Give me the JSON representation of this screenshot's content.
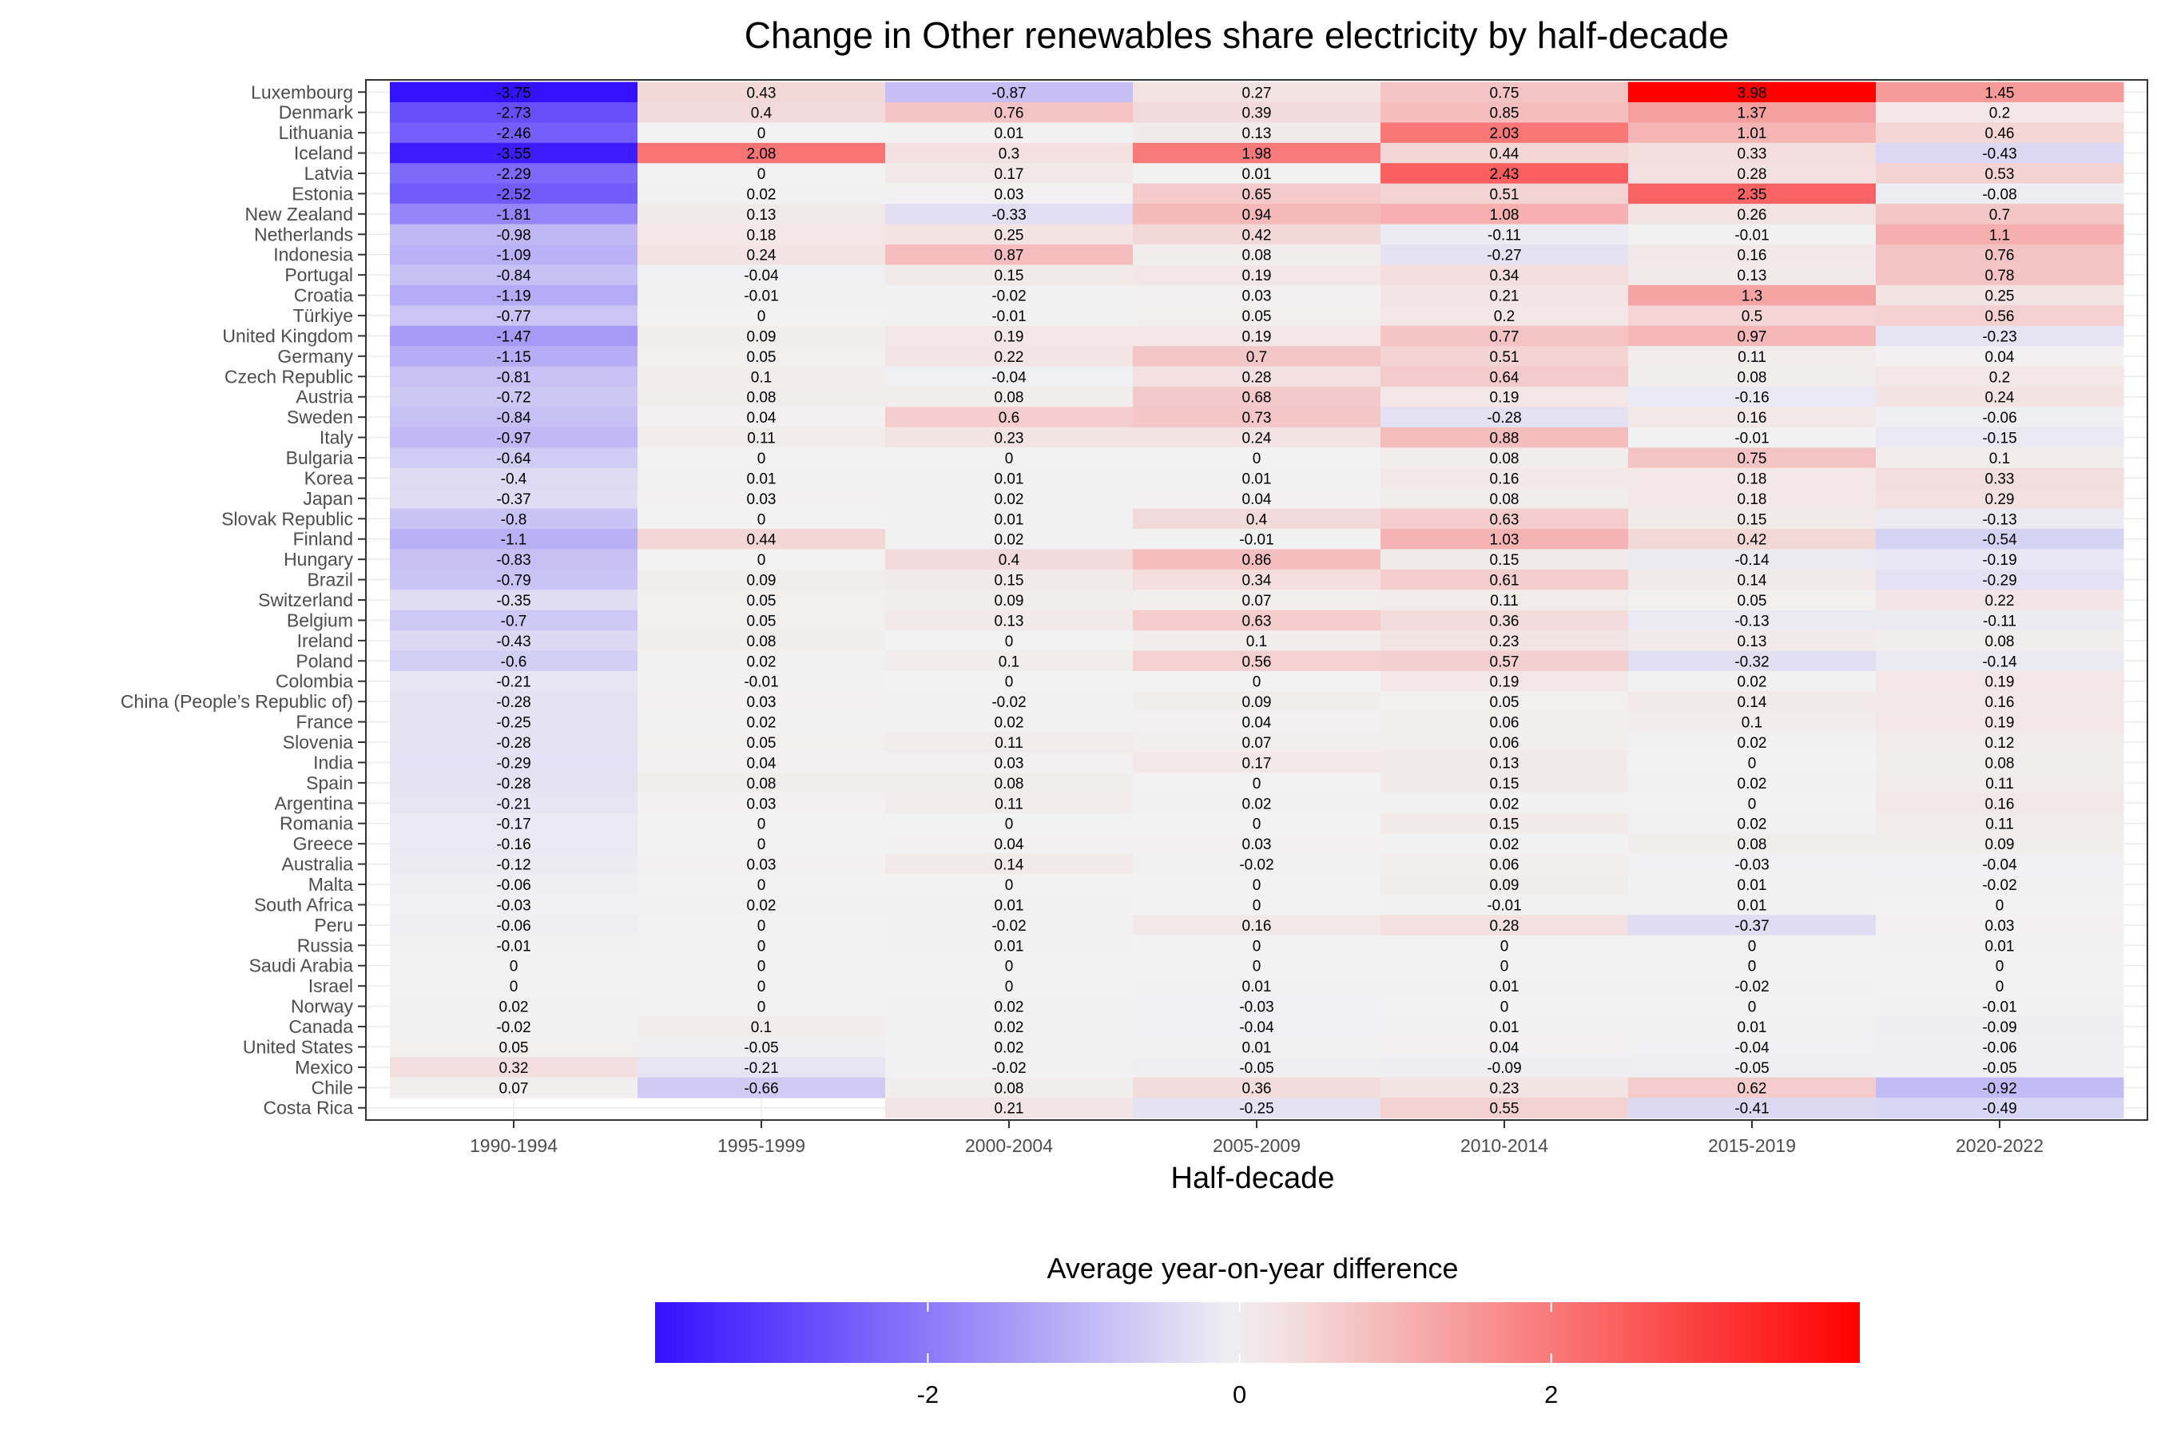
{
  "chart_data": {
    "type": "heatmap",
    "title": "Change in Other renewables share electricity by half-decade",
    "xlabel": "Half-decade",
    "legend_title": "Average year-on-year difference",
    "legend_position": "bottom",
    "legend_ticks": [
      -2,
      0,
      2
    ],
    "legend_tick_labels": [
      "-2",
      "0",
      "2"
    ],
    "color_scale": {
      "low": "#3311ff",
      "mid": "#f2f2f2",
      "high": "#ff0000",
      "min": -3.75,
      "max": 3.98,
      "midpoint": 0
    },
    "columns": [
      "1990-1994",
      "1995-1999",
      "2000-2004",
      "2005-2009",
      "2010-2014",
      "2015-2019",
      "2020-2022"
    ],
    "rows": [
      {
        "country": "Luxembourg",
        "values": [
          -3.75,
          0.43,
          -0.87,
          0.27,
          0.75,
          3.98,
          1.45
        ]
      },
      {
        "country": "Denmark",
        "values": [
          -2.73,
          0.4,
          0.76,
          0.39,
          0.85,
          1.37,
          0.2
        ]
      },
      {
        "country": "Lithuania",
        "values": [
          -2.46,
          0,
          0.01,
          0.13,
          2.03,
          1.01,
          0.46
        ]
      },
      {
        "country": "Iceland",
        "values": [
          -3.55,
          2.08,
          0.3,
          1.98,
          0.44,
          0.33,
          -0.43
        ]
      },
      {
        "country": "Latvia",
        "values": [
          -2.29,
          0,
          0.17,
          0.01,
          2.43,
          0.28,
          0.53
        ]
      },
      {
        "country": "Estonia",
        "values": [
          -2.52,
          0.02,
          0.03,
          0.65,
          0.51,
          2.35,
          -0.08
        ]
      },
      {
        "country": "New Zealand",
        "values": [
          -1.81,
          0.13,
          -0.33,
          0.94,
          1.08,
          0.26,
          0.7
        ]
      },
      {
        "country": "Netherlands",
        "values": [
          -0.98,
          0.18,
          0.25,
          0.42,
          -0.11,
          -0.01,
          1.1
        ]
      },
      {
        "country": "Indonesia",
        "values": [
          -1.09,
          0.24,
          0.87,
          0.08,
          -0.27,
          0.16,
          0.76
        ]
      },
      {
        "country": "Portugal",
        "values": [
          -0.84,
          -0.04,
          0.15,
          0.19,
          0.34,
          0.13,
          0.78
        ]
      },
      {
        "country": "Croatia",
        "values": [
          -1.19,
          -0.01,
          -0.02,
          0.03,
          0.21,
          1.3,
          0.25
        ]
      },
      {
        "country": "Türkiye",
        "values": [
          -0.77,
          0,
          -0.01,
          0.05,
          0.2,
          0.5,
          0.56
        ]
      },
      {
        "country": "United Kingdom",
        "values": [
          -1.47,
          0.09,
          0.19,
          0.19,
          0.77,
          0.97,
          -0.23
        ]
      },
      {
        "country": "Germany",
        "values": [
          -1.15,
          0.05,
          0.22,
          0.7,
          0.51,
          0.11,
          0.04
        ]
      },
      {
        "country": "Czech Republic",
        "values": [
          -0.81,
          0.1,
          -0.04,
          0.28,
          0.64,
          0.08,
          0.2
        ]
      },
      {
        "country": "Austria",
        "values": [
          -0.72,
          0.08,
          0.08,
          0.68,
          0.19,
          -0.16,
          0.24
        ]
      },
      {
        "country": "Sweden",
        "values": [
          -0.84,
          0.04,
          0.6,
          0.73,
          -0.28,
          0.16,
          -0.06
        ]
      },
      {
        "country": "Italy",
        "values": [
          -0.97,
          0.11,
          0.23,
          0.24,
          0.88,
          -0.01,
          -0.15
        ]
      },
      {
        "country": "Bulgaria",
        "values": [
          -0.64,
          0,
          0,
          0,
          0.08,
          0.75,
          0.1
        ]
      },
      {
        "country": "Korea",
        "values": [
          -0.4,
          0.01,
          0.01,
          0.01,
          0.16,
          0.18,
          0.33
        ]
      },
      {
        "country": "Japan",
        "values": [
          -0.37,
          0.03,
          0.02,
          0.04,
          0.08,
          0.18,
          0.29
        ]
      },
      {
        "country": "Slovak Republic",
        "values": [
          -0.8,
          0,
          0.01,
          0.4,
          0.63,
          0.15,
          -0.13
        ]
      },
      {
        "country": "Finland",
        "values": [
          -1.1,
          0.44,
          0.02,
          -0.01,
          1.03,
          0.42,
          -0.54
        ]
      },
      {
        "country": "Hungary",
        "values": [
          -0.83,
          0,
          0.4,
          0.86,
          0.15,
          -0.14,
          -0.19
        ]
      },
      {
        "country": "Brazil",
        "values": [
          -0.79,
          0.09,
          0.15,
          0.34,
          0.61,
          0.14,
          -0.29
        ]
      },
      {
        "country": "Switzerland",
        "values": [
          -0.35,
          0.05,
          0.09,
          0.07,
          0.11,
          0.05,
          0.22
        ]
      },
      {
        "country": "Belgium",
        "values": [
          -0.7,
          0.05,
          0.13,
          0.63,
          0.36,
          -0.13,
          -0.11
        ]
      },
      {
        "country": "Ireland",
        "values": [
          -0.43,
          0.08,
          0,
          0.1,
          0.23,
          0.13,
          0.08
        ]
      },
      {
        "country": "Poland",
        "values": [
          -0.6,
          0.02,
          0.1,
          0.56,
          0.57,
          -0.32,
          -0.14
        ]
      },
      {
        "country": "Colombia",
        "values": [
          -0.21,
          -0.01,
          0,
          0,
          0.19,
          0.02,
          0.19
        ]
      },
      {
        "country": "China (People’s Republic of)",
        "values": [
          -0.28,
          0.03,
          -0.02,
          0.09,
          0.05,
          0.14,
          0.16
        ]
      },
      {
        "country": "France",
        "values": [
          -0.25,
          0.02,
          0.02,
          0.04,
          0.06,
          0.1,
          0.19
        ]
      },
      {
        "country": "Slovenia",
        "values": [
          -0.28,
          0.05,
          0.11,
          0.07,
          0.06,
          0.02,
          0.12
        ]
      },
      {
        "country": "India",
        "values": [
          -0.29,
          0.04,
          0.03,
          0.17,
          0.13,
          0,
          0.08
        ]
      },
      {
        "country": "Spain",
        "values": [
          -0.28,
          0.08,
          0.08,
          0,
          0.15,
          0.02,
          0.11
        ]
      },
      {
        "country": "Argentina",
        "values": [
          -0.21,
          0.03,
          0.11,
          0.02,
          0.02,
          0,
          0.16
        ]
      },
      {
        "country": "Romania",
        "values": [
          -0.17,
          0,
          0,
          0,
          0.15,
          0.02,
          0.11
        ]
      },
      {
        "country": "Greece",
        "values": [
          -0.16,
          0,
          0.04,
          0.03,
          0.02,
          0.08,
          0.09
        ]
      },
      {
        "country": "Australia",
        "values": [
          -0.12,
          0.03,
          0.14,
          -0.02,
          0.06,
          -0.03,
          -0.04
        ]
      },
      {
        "country": "Malta",
        "values": [
          -0.06,
          0,
          0,
          0,
          0.09,
          0.01,
          -0.02
        ]
      },
      {
        "country": "South Africa",
        "values": [
          -0.03,
          0.02,
          0.01,
          0,
          -0.01,
          0.01,
          0
        ]
      },
      {
        "country": "Peru",
        "values": [
          -0.06,
          0,
          -0.02,
          0.16,
          0.28,
          -0.37,
          0.03
        ]
      },
      {
        "country": "Russia",
        "values": [
          -0.01,
          0,
          0.01,
          0,
          0,
          0,
          0.01
        ]
      },
      {
        "country": "Saudi Arabia",
        "values": [
          0,
          0,
          0,
          0,
          0,
          0,
          0
        ]
      },
      {
        "country": "Israel",
        "values": [
          0,
          0,
          0,
          0.01,
          0.01,
          -0.02,
          0
        ]
      },
      {
        "country": "Norway",
        "values": [
          0.02,
          0,
          0.02,
          -0.03,
          0,
          0,
          -0.01
        ]
      },
      {
        "country": "Canada",
        "values": [
          -0.02,
          0.1,
          0.02,
          -0.04,
          0.01,
          0.01,
          -0.09
        ]
      },
      {
        "country": "United States",
        "values": [
          0.05,
          -0.05,
          0.02,
          0.01,
          0.04,
          -0.04,
          -0.06
        ]
      },
      {
        "country": "Mexico",
        "values": [
          0.32,
          -0.21,
          -0.02,
          -0.05,
          -0.09,
          -0.05,
          -0.05
        ]
      },
      {
        "country": "Chile",
        "values": [
          0.07,
          -0.66,
          0.08,
          0.36,
          0.23,
          0.62,
          -0.92
        ]
      },
      {
        "country": "Costa Rica",
        "values": [
          null,
          null,
          0.21,
          -0.25,
          0.55,
          -0.41,
          -0.49
        ]
      }
    ]
  }
}
